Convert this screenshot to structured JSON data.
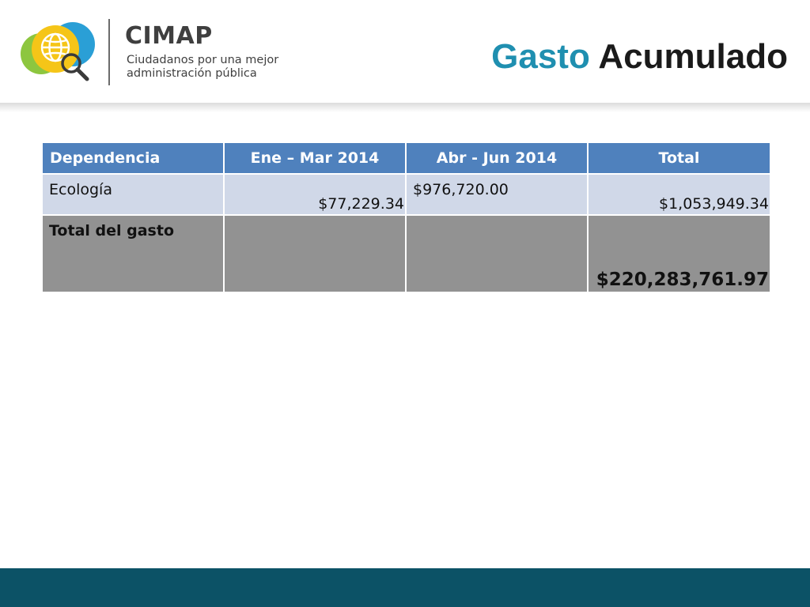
{
  "header": {
    "brand_name": "CIMAP",
    "tagline_line1": "Ciudadanos por una mejor",
    "tagline_line2": "administración pública",
    "title_word_1": "Gasto",
    "title_word_2": "Acumulado",
    "logo_icon": "globe-magnifier-logo-icon",
    "colors": {
      "title_accent": "#1f8fb0",
      "logo_yellow": "#f5c518",
      "logo_green": "#8dc63f",
      "logo_blue": "#2a9fd6"
    }
  },
  "table": {
    "headers": [
      "Dependencia",
      "Ene – Mar 2014",
      "Abr - Jun 2014",
      "Total"
    ],
    "rows": [
      {
        "dependencia": "Ecología",
        "ene_mar": "$77,229.34",
        "abr_jun": "$976,720.00",
        "total": "$1,053,949.34"
      }
    ],
    "total_row": {
      "label": "Total del gasto",
      "ene_mar": "",
      "abr_jun": "",
      "total": "$220,283,761.97"
    },
    "colors": {
      "header_bg": "#4f81bd",
      "row_bg": "#d0d8e8",
      "total_bg": "#929292"
    }
  },
  "footer": {
    "color": "#0c5266"
  }
}
